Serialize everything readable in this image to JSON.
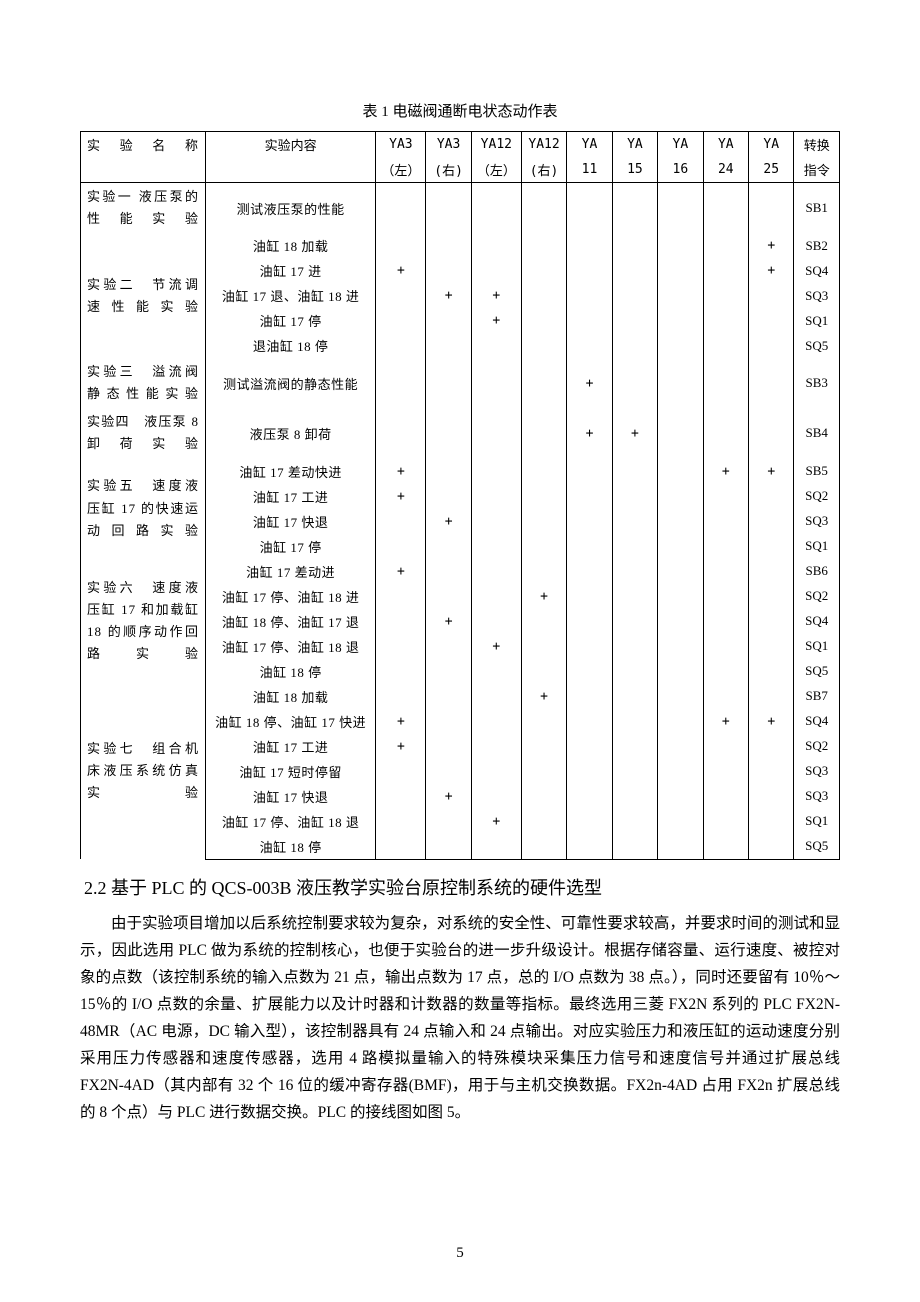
{
  "table": {
    "caption": "表 1 电磁阀通断电状态动作表",
    "headers": {
      "c1": "实验名称",
      "c2": "实验内容",
      "c3a": "YA3",
      "c3b": "（左）",
      "c4a": "YA3",
      "c4b": "(右)",
      "c5a": "YA12",
      "c5b": "（左）",
      "c6a": "YA12",
      "c6b": "(右)",
      "c7a": "YA",
      "c7b": "11",
      "c8a": "YA",
      "c8b": "15",
      "c9a": "YA",
      "c9b": "16",
      "c10a": "YA",
      "c10b": "24",
      "c11a": "YA",
      "c11b": "25",
      "c12a": "转换",
      "c12b": "指令"
    },
    "rows": [
      {
        "name": "实验一 液压泵的性能实验",
        "content": "测试液压泵的性能",
        "v": [
          "",
          "",
          "",
          "",
          "",
          "",
          "",
          "",
          ""
        ],
        "conv": "SB1"
      },
      {
        "name": "实验二　节流调速性能实验",
        "content": "油缸 18 加载",
        "v": [
          "",
          "",
          "",
          "",
          "",
          "",
          "",
          "",
          "+"
        ],
        "conv": "SB2"
      },
      {
        "name": "",
        "content": "油缸 17 进",
        "v": [
          "+",
          "",
          "",
          "",
          "",
          "",
          "",
          "",
          "+"
        ],
        "conv": "SQ4"
      },
      {
        "name": "",
        "content": "油缸 17 退、油缸 18 进",
        "v": [
          "",
          "+",
          "+",
          "",
          "",
          "",
          "",
          "",
          ""
        ],
        "conv": "SQ3"
      },
      {
        "name": "",
        "content": "油缸 17 停",
        "v": [
          "",
          "",
          "+",
          "",
          "",
          "",
          "",
          "",
          ""
        ],
        "conv": "SQ1"
      },
      {
        "name": "",
        "content": "退油缸 18 停",
        "v": [
          "",
          "",
          "",
          "",
          "",
          "",
          "",
          "",
          ""
        ],
        "conv": "SQ5"
      },
      {
        "name": "实验三　溢流阀静态性能实验",
        "content": "测试溢流阀的静态性能",
        "v": [
          "",
          "",
          "",
          "",
          "+",
          "",
          "",
          "",
          ""
        ],
        "conv": "SB3"
      },
      {
        "name": "实验四　液压泵 8 卸荷实验",
        "content": "液压泵 8 卸荷",
        "v": [
          "",
          "",
          "",
          "",
          "+",
          "+",
          "",
          "",
          ""
        ],
        "conv": "SB4"
      },
      {
        "name": "实验五　速度液压缸 17 的快速运动回路实验",
        "content": "油缸 17 差动快进",
        "v": [
          "+",
          "",
          "",
          "",
          "",
          "",
          "",
          "+",
          "+"
        ],
        "conv": "SB5"
      },
      {
        "name": "",
        "content": "油缸 17 工进",
        "v": [
          "+",
          "",
          "",
          "",
          "",
          "",
          "",
          "",
          ""
        ],
        "conv": "SQ2"
      },
      {
        "name": "",
        "content": "油缸 17 快退",
        "v": [
          "",
          "+",
          "",
          "",
          "",
          "",
          "",
          "",
          ""
        ],
        "conv": "SQ3"
      },
      {
        "name": "",
        "content": "油缸 17 停",
        "v": [
          "",
          "",
          "",
          "",
          "",
          "",
          "",
          "",
          ""
        ],
        "conv": "SQ1"
      },
      {
        "name": "实验六　速度液压缸 17 和加载缸18 的顺序动作回路实验",
        "content": "油缸 17 差动进",
        "v": [
          "+",
          "",
          "",
          "",
          "",
          "",
          "",
          "",
          ""
        ],
        "conv": "SB6"
      },
      {
        "name": "",
        "content": "油缸 17 停、油缸 18 进",
        "v": [
          "",
          "",
          "",
          "+",
          "",
          "",
          "",
          "",
          ""
        ],
        "conv": "SQ2"
      },
      {
        "name": "",
        "content": "油缸 18 停、油缸 17 退",
        "v": [
          "",
          "+",
          "",
          "",
          "",
          "",
          "",
          "",
          ""
        ],
        "conv": "SQ4"
      },
      {
        "name": "",
        "content": "油缸 17 停、油缸 18 退",
        "v": [
          "",
          "",
          "+",
          "",
          "",
          "",
          "",
          "",
          ""
        ],
        "conv": "SQ1"
      },
      {
        "name": "",
        "content": "油缸 18 停",
        "v": [
          "",
          "",
          "",
          "",
          "",
          "",
          "",
          "",
          ""
        ],
        "conv": "SQ5"
      },
      {
        "name": "实验七　组合机床液压系统仿真实验",
        "content": "油缸 18 加载",
        "v": [
          "",
          "",
          "",
          "+",
          "",
          "",
          "",
          "",
          ""
        ],
        "conv": "SB7"
      },
      {
        "name": "",
        "content": "油缸 18 停、油缸 17 快进",
        "v": [
          "+",
          "",
          "",
          "",
          "",
          "",
          "",
          "+",
          "+"
        ],
        "conv": "SQ4"
      },
      {
        "name": "",
        "content": "油缸 17 工进",
        "v": [
          "+",
          "",
          "",
          "",
          "",
          "",
          "",
          "",
          ""
        ],
        "conv": "SQ2"
      },
      {
        "name": "",
        "content": "油缸 17 短时停留",
        "v": [
          "",
          "",
          "",
          "",
          "",
          "",
          "",
          "",
          ""
        ],
        "conv": "SQ3"
      },
      {
        "name": "",
        "content": "油缸 17 快退",
        "v": [
          "",
          "+",
          "",
          "",
          "",
          "",
          "",
          "",
          ""
        ],
        "conv": "SQ3"
      },
      {
        "name": "",
        "content": "油缸 17 停、油缸 18 退",
        "v": [
          "",
          "",
          "+",
          "",
          "",
          "",
          "",
          "",
          ""
        ],
        "conv": "SQ1"
      },
      {
        "name": "",
        "content": "油缸 18 停",
        "v": [
          "",
          "",
          "",
          "",
          "",
          "",
          "",
          "",
          ""
        ],
        "conv": "SQ5"
      }
    ],
    "groups": [
      {
        "start": 0,
        "span": 1
      },
      {
        "start": 1,
        "span": 2
      },
      {
        "start": 6,
        "span": 1
      },
      {
        "start": 7,
        "span": 1
      },
      {
        "start": 8,
        "span": 3
      },
      {
        "start": 12,
        "span": 4
      },
      {
        "start": 17,
        "span": 3
      }
    ]
  },
  "section": {
    "heading": "2.2  基于 PLC 的 QCS-003B 液压教学实验台原控制系统的硬件选型",
    "body": "由于实验项目增加以后系统控制要求较为复杂，对系统的安全性、可靠性要求较高，并要求时间的测试和显示，因此选用 PLC 做为系统的控制核心，也便于实验台的进一步升级设计。根据存储容量、运行速度、被控对象的点数（该控制系统的输入点数为 21 点，输出点数为 17 点，总的 I/O 点数为 38 点。），同时还要留有 10％～15％的 I/O 点数的余量、扩展能力以及计时器和计数器的数量等指标。最终选用三菱 FX2N 系列的 PLC FX2N-48MR（AC 电源，DC 输入型），该控制器具有 24 点输入和 24 点输出。对应实验压力和液压缸的运动速度分别采用压力传感器和速度传感器，选用 4 路模拟量输入的特殊模块采集压力信号和速度信号并通过扩展总线 FX2N-4AD（其内部有 32 个 16 位的缓冲寄存器(BMF)，用于与主机交换数据。FX2n-4AD 占用 FX2n 扩展总线的 8 个点）与 PLC 进行数据交换。PLC 的接线图如图 5。"
  },
  "pageNumber": "5"
}
